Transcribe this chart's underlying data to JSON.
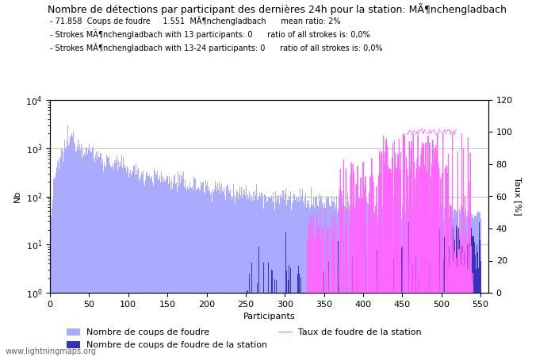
{
  "title": "Nombre de détections par participant des dernières 24h pour la station: MÃ¶nchengladbach",
  "subtitle_lines": [
    " 71.858  Coups de foudre     1.551  MÃ¶nchengladbach      mean ratio: 2%",
    " Strokes MÃ¶nchengladbach with 13 participants: 0      ratio of all strokes is: 0,0%",
    " Strokes MÃ¶nchengladbach with 13-24 participants: 0      ratio of all strokes is: 0,0%"
  ],
  "xlabel": "Participants",
  "ylabel_left": "Nb",
  "ylabel_right": "Taux [%]",
  "xlim": [
    0,
    560
  ],
  "ylim_right": [
    0,
    120
  ],
  "watermark": "www.lightningmaps.org",
  "bar_color_light": "#aaaaff",
  "bar_color_dark": "#3333bb",
  "line_color": "#ff66ff",
  "legend_entries": [
    "Nombre de coups de foudre",
    "Nombre de coups de foudre de la station",
    "Taux de foudre de la station"
  ],
  "n_participants": 550,
  "peak_participant": 28,
  "peak_value": 1800,
  "grid_color": "#aaaaaa",
  "title_fontsize": 9,
  "subtitle_fontsize": 7,
  "axis_fontsize": 8,
  "legend_fontsize": 8
}
